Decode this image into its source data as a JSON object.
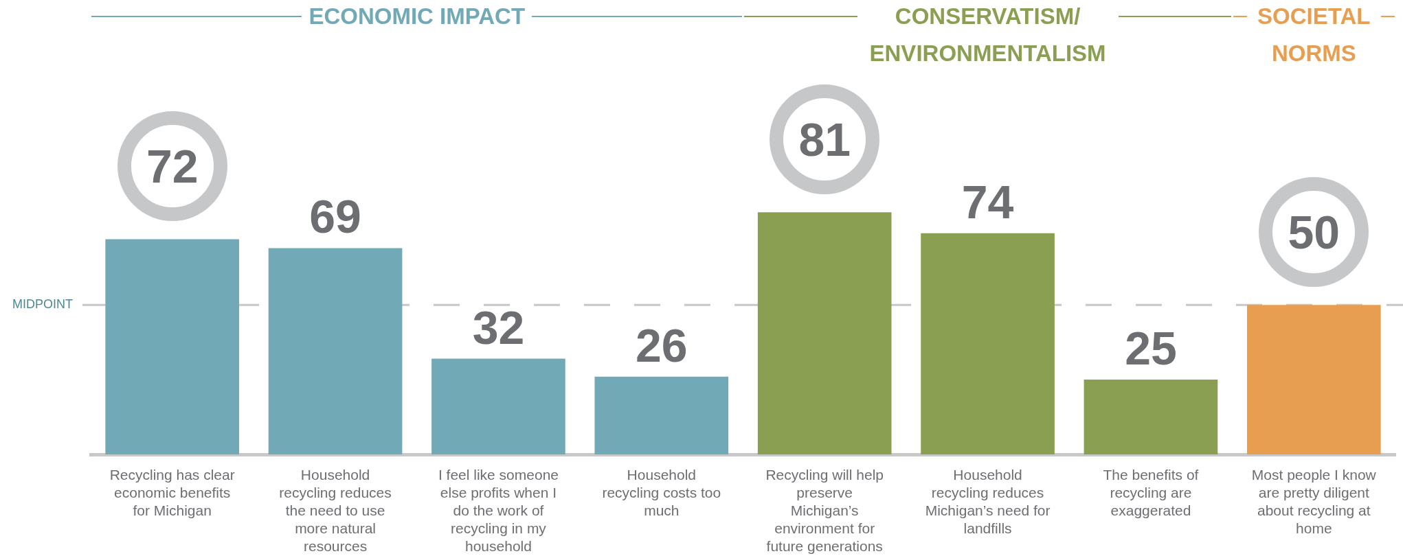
{
  "chart_data": {
    "type": "bar",
    "categories": [
      "Recycling has clear economic benefits for Michigan",
      "Household recycling reduces the need to use more natural resources",
      "I feel like someone else profits when I do the work of recycling in my household",
      "Household recycling costs too much",
      "Recycling will help preserve Michigan’s environment for future generations",
      "Household recycling reduces Michigan’s need for landfills",
      "The benefits of recycling are exaggerated",
      "Most people I know are pretty diligent about recycling at home"
    ],
    "series": [
      {
        "name": "ECONOMIC IMPACT",
        "color": "#71a9b6",
        "values": [
          72,
          69,
          32,
          26,
          null,
          null,
          null,
          null
        ]
      },
      {
        "name": "CONSERVATISM/ ENVIRONMENTALISM",
        "color": "#8a9f51",
        "values": [
          null,
          null,
          null,
          null,
          81,
          74,
          25,
          null
        ]
      },
      {
        "name": "SOCIETAL NORMS",
        "color": "#e79e50",
        "values": [
          null,
          null,
          null,
          null,
          null,
          null,
          null,
          50
        ]
      }
    ],
    "ref_lines": [
      {
        "axis": "y",
        "value": 50,
        "label": "MIDPOINT",
        "color": "#c8c8c8",
        "line_style": "dashed"
      }
    ],
    "data_labels": true,
    "tick_labels": "x",
    "legend": "top"
  }
}
